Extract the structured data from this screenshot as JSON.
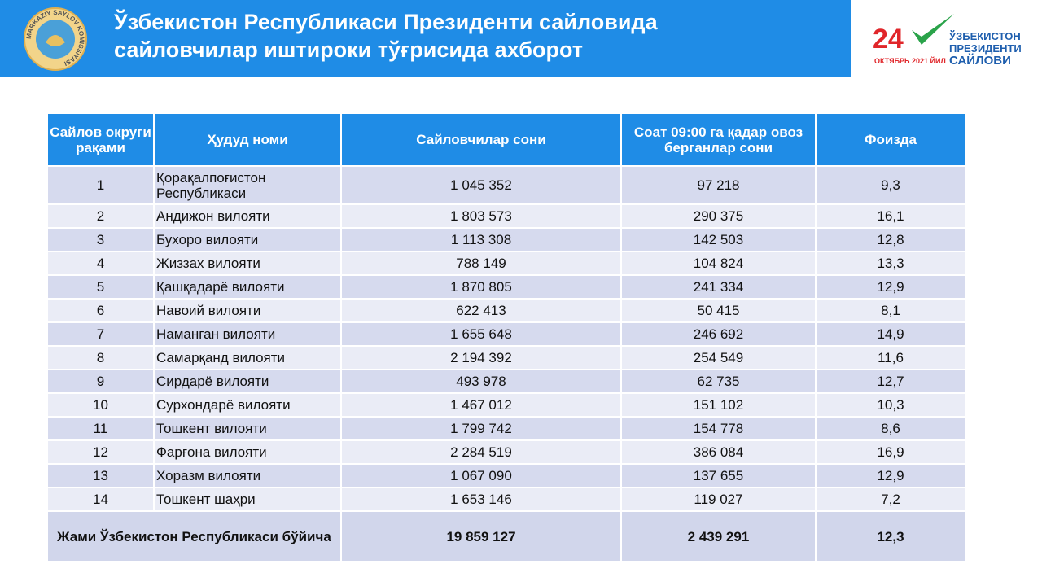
{
  "header": {
    "title": [
      "Ўзбекистон Республикаси Президенти сайловида",
      "сайловчилар иштироки тўғрисида ахборот"
    ],
    "emblem_text": "MARKAZIY SAYLOV KOMISSIYASI",
    "election_logo": {
      "day": "24",
      "date": "ОКТЯБРЬ 2021 ЙИЛ",
      "lines": [
        "ЎЗБЕКИСТОН",
        "ПРЕЗИДЕНТИ",
        "САЙЛОВИ"
      ]
    }
  },
  "table": {
    "columns": [
      "Сайлов округи рақами",
      "Ҳудуд номи",
      "Сайловчилар сони",
      "Соат 09:00 га қадар овоз берганлар сони",
      "Фоизда"
    ],
    "rows": [
      [
        "1",
        "Қорақалпоғистон Республикаси",
        "1 045 352",
        "97 218",
        "9,3"
      ],
      [
        "2",
        "Андижон вилояти",
        "1 803 573",
        "290 375",
        "16,1"
      ],
      [
        "3",
        "Бухоро вилояти",
        "1 113 308",
        "142 503",
        "12,8"
      ],
      [
        "4",
        "Жиззах вилояти",
        "788 149",
        "104 824",
        "13,3"
      ],
      [
        "5",
        "Қашқадарё вилояти",
        "1 870 805",
        "241 334",
        "12,9"
      ],
      [
        "6",
        "Навоий вилояти",
        "622 413",
        "50 415",
        "8,1"
      ],
      [
        "7",
        "Наманган вилояти",
        "1 655 648",
        "246 692",
        "14,9"
      ],
      [
        "8",
        "Самарқанд вилояти",
        "2 194 392",
        "254 549",
        "11,6"
      ],
      [
        "9",
        "Сирдарё вилояти",
        "493 978",
        "62 735",
        "12,7"
      ],
      [
        "10",
        "Сурхондарё вилояти",
        "1 467 012",
        "151 102",
        "10,3"
      ],
      [
        "11",
        "Тошкент вилояти",
        "1 799 742",
        "154 778",
        "8,6"
      ],
      [
        "12",
        "Фарғона вилояти",
        "2 284 519",
        "386 084",
        "16,9"
      ],
      [
        "13",
        "Хоразм вилояти",
        "1 067 090",
        "137 655",
        "12,9"
      ],
      [
        "14",
        "Тошкент шаҳри",
        "1 653 146",
        "119 027",
        "7,2"
      ]
    ],
    "total": [
      "Жами Ўзбекистон Республикаси бўйича",
      "19 859 127",
      "2 439 291",
      "12,3"
    ]
  }
}
